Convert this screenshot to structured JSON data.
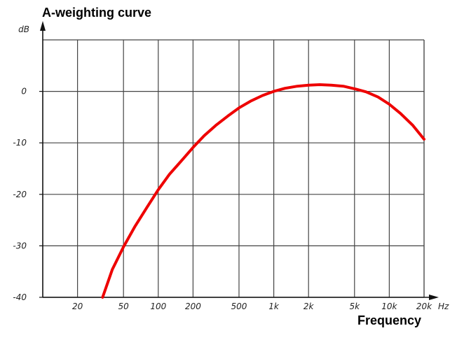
{
  "chart_data": {
    "type": "line",
    "title": "A-weighting curve",
    "xlabel": "Frequency",
    "x_unit": "Hz",
    "y_unit": "dB",
    "x_scale": "log",
    "xlim": [
      10,
      20000
    ],
    "ylim": [
      -40,
      10
    ],
    "grid": true,
    "x_ticks": [
      {
        "value": 20,
        "label": "20"
      },
      {
        "value": 50,
        "label": "50"
      },
      {
        "value": 100,
        "label": "100"
      },
      {
        "value": 200,
        "label": "200"
      },
      {
        "value": 500,
        "label": "500"
      },
      {
        "value": 1000,
        "label": "1k"
      },
      {
        "value": 2000,
        "label": "2k"
      },
      {
        "value": 5000,
        "label": "5k"
      },
      {
        "value": 10000,
        "label": "10k"
      },
      {
        "value": 20000,
        "label": "20k"
      }
    ],
    "y_ticks": [
      {
        "value": 0,
        "label": "0"
      },
      {
        "value": -10,
        "label": "-10"
      },
      {
        "value": -20,
        "label": "-20"
      },
      {
        "value": -30,
        "label": "-30"
      },
      {
        "value": -40,
        "label": "-40"
      }
    ],
    "series": [
      {
        "color": "#ee0000",
        "x": [
          33,
          40,
          50,
          63,
          80,
          100,
          125,
          160,
          200,
          250,
          315,
          400,
          500,
          630,
          800,
          1000,
          1250,
          1600,
          2000,
          2500,
          3150,
          4000,
          5000,
          6300,
          8000,
          10000,
          12500,
          16000,
          20000
        ],
        "y": [
          -40,
          -34.6,
          -30.2,
          -26.2,
          -22.5,
          -19.1,
          -16.1,
          -13.4,
          -10.9,
          -8.6,
          -6.6,
          -4.8,
          -3.2,
          -1.9,
          -0.8,
          0,
          0.6,
          1.0,
          1.2,
          1.3,
          1.2,
          1.0,
          0.5,
          -0.1,
          -1.1,
          -2.5,
          -4.3,
          -6.6,
          -9.3
        ]
      }
    ]
  }
}
